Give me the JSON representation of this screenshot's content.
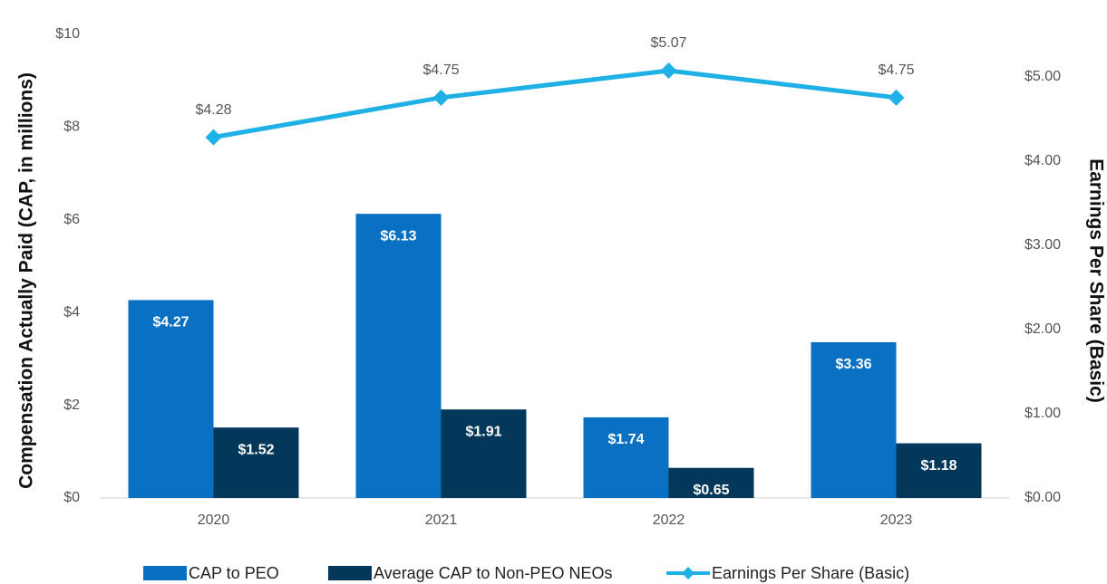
{
  "chart_data": {
    "type": "bar",
    "categories": [
      "2020",
      "2021",
      "2022",
      "2023"
    ],
    "ylabel": "Compensation Actually Paid (CAP, in millions)",
    "y2label": "Earnings Per Share (Basic)",
    "ylim": [
      0,
      10
    ],
    "yticks": [
      {
        "value": 0,
        "label": "$0"
      },
      {
        "value": 2,
        "label": "$2"
      },
      {
        "value": 4,
        "label": "$4"
      },
      {
        "value": 6,
        "label": "$6"
      },
      {
        "value": 8,
        "label": "$8"
      },
      {
        "value": 10,
        "label": "$10"
      }
    ],
    "y2lim": [
      0,
      5.5
    ],
    "y2ticks": [
      {
        "value": 0,
        "label": "$0.00"
      },
      {
        "value": 1,
        "label": "$1.00"
      },
      {
        "value": 2,
        "label": "$2.00"
      },
      {
        "value": 3,
        "label": "$3.00"
      },
      {
        "value": 4,
        "label": "$4.00"
      },
      {
        "value": 5,
        "label": "$5.00"
      }
    ],
    "legend": "bottom",
    "series": [
      {
        "name": "CAP to PEO",
        "type": "bar",
        "color": "#0a70c2",
        "values": [
          4.27,
          6.13,
          1.74,
          3.36
        ],
        "value_labels": [
          "$4.27",
          "$6.13",
          "$1.74",
          "$3.36"
        ]
      },
      {
        "name": "Average CAP to Non-PEO NEOs",
        "type": "bar",
        "color": "#03385b",
        "values": [
          1.52,
          1.91,
          0.65,
          1.18
        ],
        "value_labels": [
          "$1.52",
          "$1.91",
          "$0.65",
          "$1.18"
        ]
      },
      {
        "name": "Earnings Per Share (Basic)",
        "type": "line",
        "axis": "y2",
        "color": "#1fb0e6",
        "values": [
          4.28,
          4.75,
          5.07,
          4.75
        ],
        "value_labels": [
          "$4.28",
          "$4.75",
          "$5.07",
          "$4.75"
        ]
      }
    ]
  }
}
